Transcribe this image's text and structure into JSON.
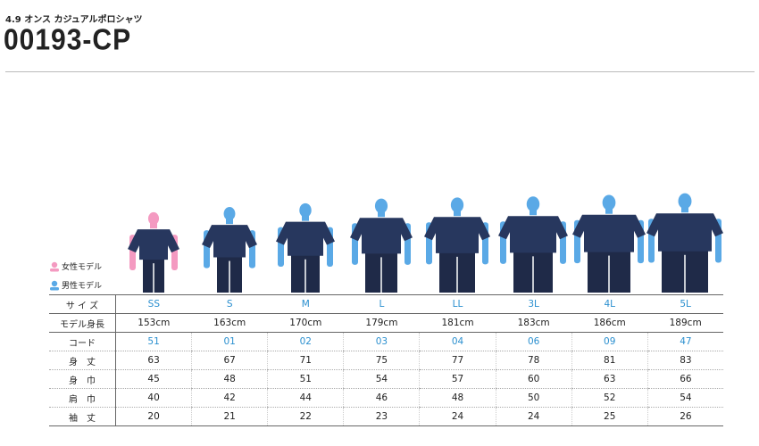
{
  "header": {
    "subtitle": "4.9 オンス カジュアルポロシャツ",
    "title": "00193-CP"
  },
  "legend": [
    {
      "label": "女性モデル",
      "color": "#f49ac1",
      "icon": "person-icon"
    },
    {
      "label": "男性モデル",
      "color": "#5aa9e6",
      "icon": "person-icon"
    }
  ],
  "colors": {
    "shirt": "#27375e",
    "pants": "#1f2a48",
    "female_skin": "#f49ac1",
    "male_skin": "#5aa9e6",
    "accent": "#2a8fcf"
  },
  "models": [
    {
      "size": "SS",
      "gender": "female"
    },
    {
      "size": "S",
      "gender": "male"
    },
    {
      "size": "M",
      "gender": "male"
    },
    {
      "size": "L",
      "gender": "male"
    },
    {
      "size": "LL",
      "gender": "male"
    },
    {
      "size": "3L",
      "gender": "male"
    },
    {
      "size": "4L",
      "gender": "male"
    },
    {
      "size": "5L",
      "gender": "male"
    }
  ],
  "table": {
    "rows": [
      {
        "label": "サ イ ズ",
        "values": [
          "SS",
          "S",
          "M",
          "L",
          "LL",
          "3L",
          "4L",
          "5L"
        ],
        "accent": true
      },
      {
        "label": "モデル身長",
        "values": [
          "153cm",
          "163cm",
          "170cm",
          "179cm",
          "181cm",
          "183cm",
          "186cm",
          "189cm"
        ]
      },
      {
        "label": "コード",
        "values": [
          "51",
          "01",
          "02",
          "03",
          "04",
          "06",
          "09",
          "47"
        ],
        "accent": true
      },
      {
        "label": "身　丈",
        "values": [
          "63",
          "67",
          "71",
          "75",
          "77",
          "78",
          "81",
          "83"
        ]
      },
      {
        "label": "身　巾",
        "values": [
          "45",
          "48",
          "51",
          "54",
          "57",
          "60",
          "63",
          "66"
        ]
      },
      {
        "label": "肩　巾",
        "values": [
          "40",
          "42",
          "44",
          "46",
          "48",
          "50",
          "52",
          "54"
        ]
      },
      {
        "label": "袖　丈",
        "values": [
          "20",
          "21",
          "22",
          "23",
          "24",
          "24",
          "25",
          "26"
        ]
      }
    ]
  }
}
